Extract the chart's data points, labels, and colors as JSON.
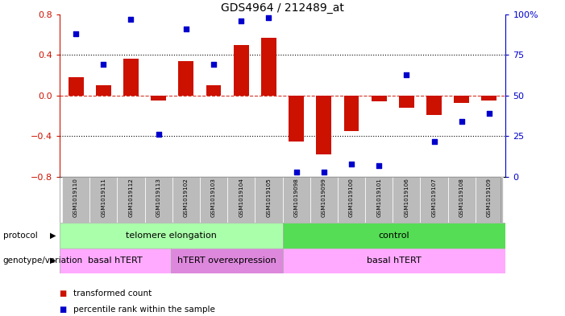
{
  "title": "GDS4964 / 212489_at",
  "samples": [
    "GSM1019110",
    "GSM1019111",
    "GSM1019112",
    "GSM1019113",
    "GSM1019102",
    "GSM1019103",
    "GSM1019104",
    "GSM1019105",
    "GSM1019098",
    "GSM1019099",
    "GSM1019100",
    "GSM1019101",
    "GSM1019106",
    "GSM1019107",
    "GSM1019108",
    "GSM1019109"
  ],
  "bar_values": [
    0.18,
    0.1,
    0.36,
    -0.05,
    0.34,
    0.1,
    0.5,
    0.57,
    -0.45,
    -0.58,
    -0.35,
    -0.06,
    -0.12,
    -0.19,
    -0.07,
    -0.05
  ],
  "dot_percentiles": [
    88,
    69,
    97,
    26,
    91,
    69,
    96,
    98,
    3,
    3,
    8,
    7,
    63,
    22,
    34,
    39
  ],
  "bar_color": "#cc1100",
  "dot_color": "#0000cc",
  "ylim": [
    -0.8,
    0.8
  ],
  "y2lim": [
    0,
    100
  ],
  "y_ticks": [
    -0.8,
    -0.4,
    0.0,
    0.4,
    0.8
  ],
  "y2_ticks": [
    0,
    25,
    50,
    75,
    100
  ],
  "protocol_groups": [
    {
      "label": "telomere elongation",
      "start": 0,
      "end": 8,
      "color": "#aaffaa"
    },
    {
      "label": "control",
      "start": 8,
      "end": 16,
      "color": "#55dd55"
    }
  ],
  "genotype_groups": [
    {
      "label": "basal hTERT",
      "start": 0,
      "end": 4,
      "color": "#ffaaff"
    },
    {
      "label": "hTERT overexpression",
      "start": 4,
      "end": 8,
      "color": "#dd88dd"
    },
    {
      "label": "basal hTERT",
      "start": 8,
      "end": 16,
      "color": "#ffaaff"
    }
  ],
  "legend_bar_label": "transformed count",
  "legend_dot_label": "percentile rank within the sample",
  "background_color": "#ffffff",
  "sample_bg_color": "#bbbbbb"
}
